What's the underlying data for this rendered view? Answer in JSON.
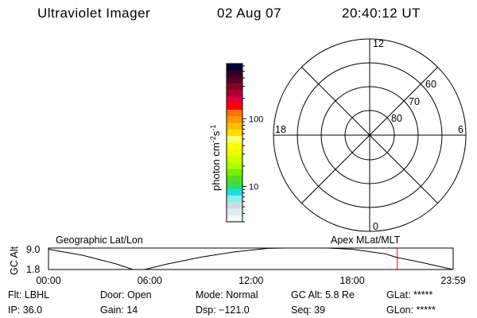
{
  "header": {
    "instrument": "Ultraviolet Imager",
    "date": "02 Aug 07",
    "time": "20:40:12 UT"
  },
  "colorbar": {
    "label": "photon cm",
    "label_sup1": "-2",
    "label_mid": "s",
    "label_sup2": "-1",
    "scale": "log",
    "range": [
      3,
      650
    ],
    "tick_labels": [
      "100",
      "10"
    ],
    "tick_values": [
      100,
      10
    ],
    "colors": [
      "#000033",
      "#330022",
      "#550022",
      "#880022",
      "#aa0033",
      "#dd0033",
      "#ff0000",
      "#ff7700",
      "#ff9900",
      "#ffbb00",
      "#ffdd00",
      "#ffff77",
      "#ffff00",
      "#eeff00",
      "#ccff00",
      "#aaff00",
      "#77ee00",
      "#55dd22",
      "#33dd55",
      "#22dddd",
      "#88eeee",
      "#ccdddd",
      "#ddeeee",
      "#f5f8f5"
    ]
  },
  "polar": {
    "mlt_labels": {
      "top": "12",
      "left": "18",
      "right": "6",
      "bottom": "0"
    },
    "lat_labels": [
      "60",
      "70",
      "80"
    ],
    "coord_label": "Apex MLat/MLT"
  },
  "chart_data": {
    "type": "line",
    "title": "",
    "left_label": "Geographic Lat/Lon",
    "ylabel": "GC Alt",
    "ytick_labels": [
      "9.0",
      "1.8"
    ],
    "ylim": [
      1.8,
      9.0
    ],
    "xtick_labels": [
      "00:00",
      "06:00",
      "12:00",
      "18:00",
      "23:59"
    ],
    "xlim_hours": [
      0,
      23.98
    ],
    "x_hours": [
      0,
      2,
      4,
      5.0,
      5.7,
      7,
      9,
      11,
      13,
      14,
      16.5,
      18,
      20,
      20.67,
      22,
      23.98
    ],
    "y": [
      8.6,
      6.6,
      3.7,
      1.8,
      1.8,
      3.6,
      5.9,
      7.7,
      8.9,
      9.0,
      9.0,
      8.6,
      7.0,
      5.8,
      4.3,
      1.8
    ],
    "current_time_hours": 20.67,
    "current_marker_color": "#ff0000"
  },
  "info": {
    "flt": "Flt: LBHL",
    "ip": "IP: 36.0",
    "door": "Door: Open",
    "gain": "Gain: 14",
    "mode": "Mode: Normal",
    "dsp": "Dsp: −121.0",
    "gcalt": "GC Alt: 5.8 Re",
    "seq": "Seq: 39",
    "glat": "GLat: *****",
    "glon": "GLon: *****"
  }
}
